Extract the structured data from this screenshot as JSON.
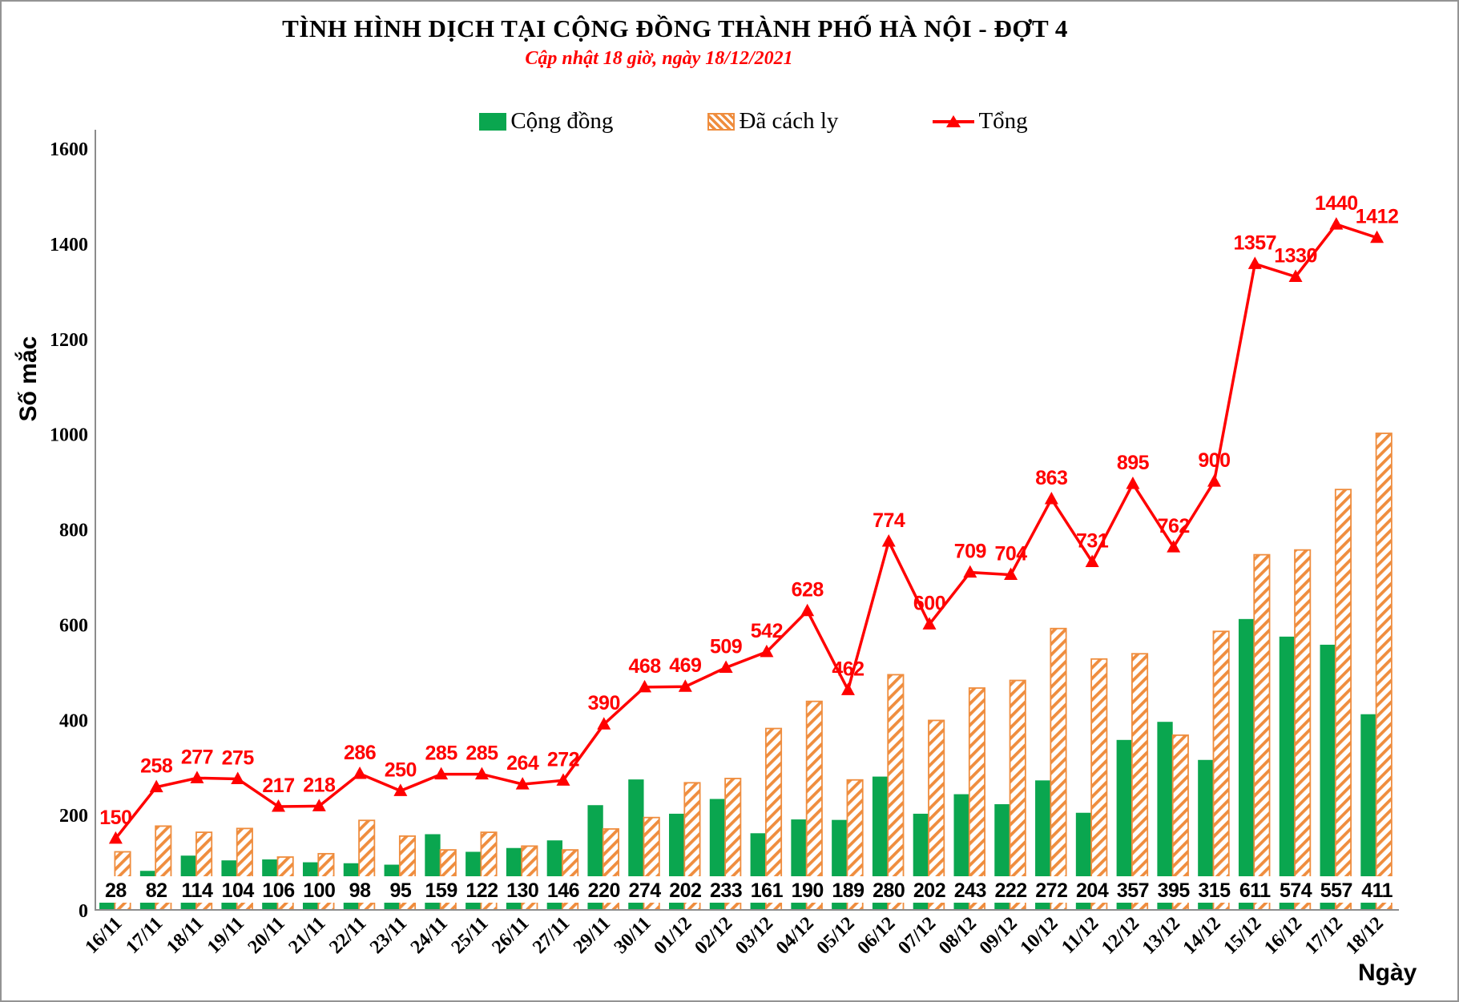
{
  "chart_data": {
    "type": "bar",
    "subtype": "clustered-bars-with-line",
    "title": "TÌNH HÌNH DỊCH TẠI CỘNG ĐỒNG THÀNH PHỐ HÀ NỘI - ĐỢT 4",
    "subtitle": "Cập nhật 18 giờ, ngày 18/12/2021",
    "xlabel": "Ngày",
    "ylabel": "Số mắc",
    "ylim": [
      0,
      1600
    ],
    "ytick_step": 200,
    "grid": false,
    "legend_position": "top-center",
    "categories": [
      "16/11",
      "17/11",
      "18/11",
      "19/11",
      "20/11",
      "21/11",
      "22/11",
      "23/11",
      "24/11",
      "25/11",
      "26/11",
      "27/11",
      "29/11",
      "30/11",
      "01/12",
      "02/12",
      "03/12",
      "04/12",
      "05/12",
      "06/12",
      "07/12",
      "08/12",
      "09/12",
      "10/12",
      "11/12",
      "12/12",
      "13/12",
      "14/12",
      "15/12",
      "16/12",
      "17/12",
      "18/12"
    ],
    "series": [
      {
        "name": "Cộng đồng",
        "type": "bar",
        "style": "solid",
        "color": "#0aa64f",
        "values": [
          28,
          82,
          114,
          104,
          106,
          100,
          98,
          95,
          159,
          122,
          130,
          146,
          220,
          274,
          202,
          233,
          161,
          190,
          189,
          280,
          202,
          243,
          222,
          272,
          204,
          357,
          395,
          315,
          611,
          574,
          557,
          411
        ]
      },
      {
        "name": "Đã cách ly",
        "type": "bar",
        "style": "hatched",
        "color": "#ef8d3e",
        "values": [
          122,
          176,
          163,
          171,
          111,
          118,
          188,
          155,
          126,
          163,
          134,
          126,
          170,
          194,
          267,
          276,
          381,
          438,
          273,
          494,
          398,
          466,
          482,
          591,
          527,
          538,
          367,
          585,
          746,
          756,
          883,
          1001
        ]
      },
      {
        "name": "Tổng",
        "type": "line",
        "marker": "triangle",
        "color": "#ff0000",
        "data_labels": true,
        "values": [
          150,
          258,
          277,
          275,
          217,
          218,
          286,
          250,
          285,
          285,
          264,
          272,
          390,
          468,
          469,
          509,
          542,
          628,
          462,
          774,
          600,
          709,
          704,
          863,
          731,
          895,
          762,
          900,
          1357,
          1330,
          1440,
          1412
        ]
      }
    ],
    "base_value_boxes": {
      "description": "white boxes at bar base showing Cộng đồng values",
      "series_index": 0
    },
    "axis_color": "#8c8c8c"
  }
}
